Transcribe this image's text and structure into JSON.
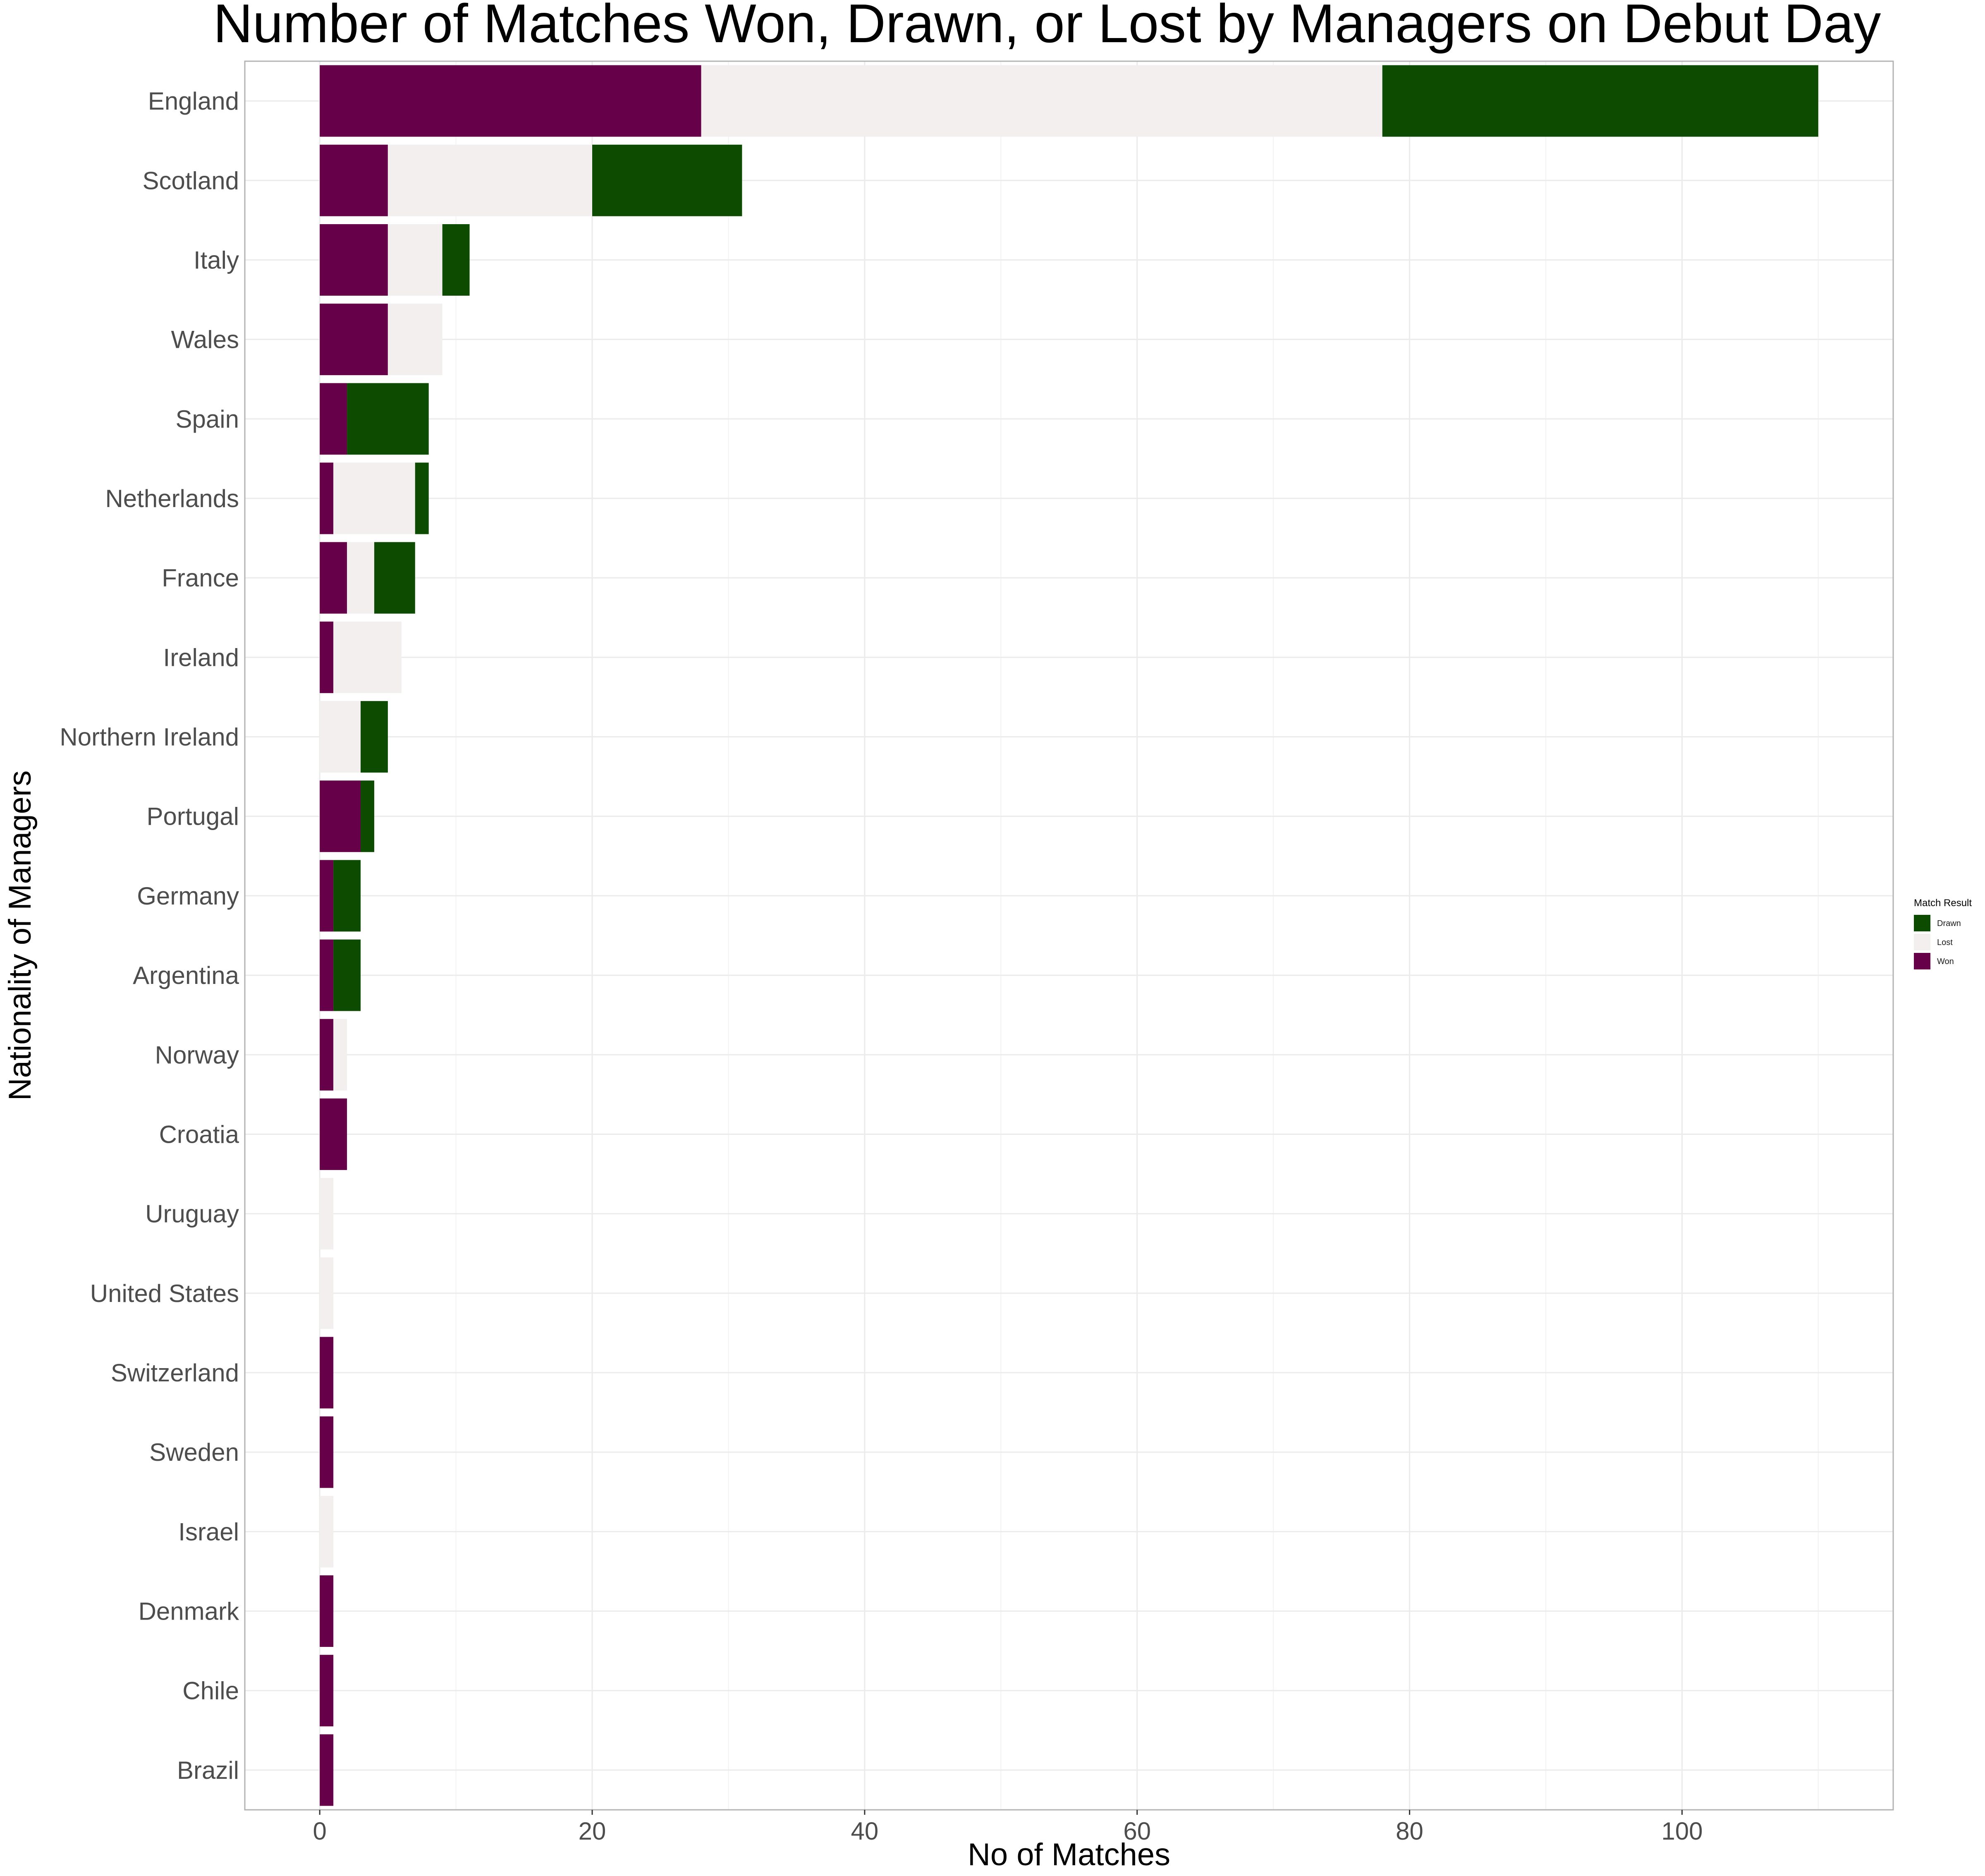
{
  "chart_data": {
    "type": "bar",
    "orientation": "horizontal",
    "stacked": true,
    "title": "Number of Matches Won, Drawn, or Lost by Managers on Debut Day",
    "xlabel": "No of Matches",
    "ylabel": "Nationality of Managers",
    "xlim": [
      -5.5,
      115.5
    ],
    "x_ticks": [
      0,
      20,
      40,
      60,
      80,
      100
    ],
    "grid": true,
    "legend_position": "right",
    "categories": [
      "England",
      "Scotland",
      "Italy",
      "Wales",
      "Spain",
      "Netherlands",
      "France",
      "Ireland",
      "Northern Ireland",
      "Portugal",
      "Germany",
      "Argentina",
      "Norway",
      "Croatia",
      "Uruguay",
      "United States",
      "Switzerland",
      "Sweden",
      "Israel",
      "Denmark",
      "Chile",
      "Brazil"
    ],
    "series": [
      {
        "name": "Won",
        "color": "#660048",
        "values": [
          28,
          5,
          5,
          5,
          2,
          1,
          2,
          1,
          0,
          3,
          1,
          1,
          1,
          2,
          0,
          0,
          1,
          1,
          0,
          1,
          1,
          1
        ]
      },
      {
        "name": "Lost",
        "color": "#f2efee",
        "values": [
          50,
          15,
          4,
          4,
          0,
          6,
          2,
          5,
          3,
          0,
          0,
          0,
          1,
          0,
          1,
          1,
          0,
          0,
          1,
          0,
          0,
          0
        ]
      },
      {
        "name": "Drawn",
        "color": "#0d4c00",
        "values": [
          32,
          11,
          2,
          0,
          6,
          1,
          3,
          0,
          2,
          1,
          2,
          2,
          0,
          0,
          0,
          0,
          0,
          0,
          0,
          0,
          0,
          0
        ]
      }
    ],
    "legend": {
      "title": "Match Result",
      "entries": [
        "Drawn",
        "Lost",
        "Won"
      ]
    }
  }
}
